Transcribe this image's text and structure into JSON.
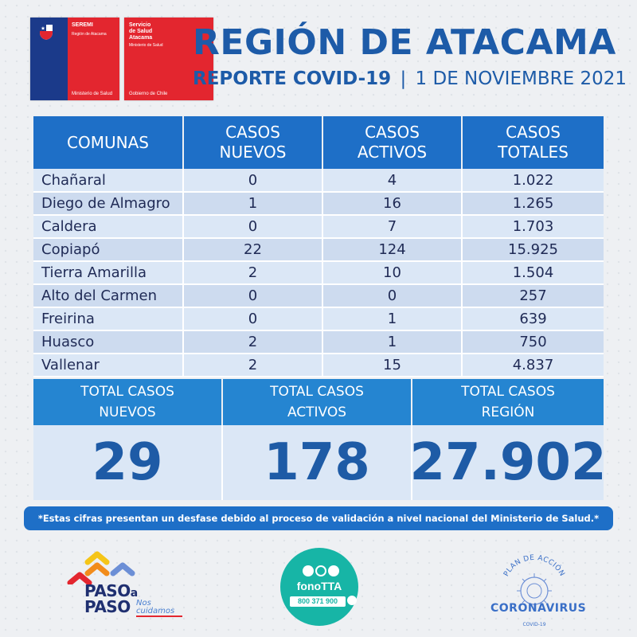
{
  "logos": {
    "seremi": {
      "title": "SEREMI",
      "region": "Región de Atacama",
      "ministry": "Ministerio de Salud"
    },
    "servicio": {
      "line1": "Servicio",
      "line2": "de Salud",
      "line3": "Atacama",
      "sub": "Ministerio de Salud",
      "gov": "Gobierno de Chile"
    }
  },
  "header": {
    "title": "REGIÓN DE ATACAMA",
    "report_label": "REPORTE COVID-19",
    "separator": "|",
    "date": "1 DE NOVIEMBRE 2021"
  },
  "table": {
    "headers": {
      "comunas": "COMUNAS",
      "nuevos_1": "CASOS",
      "nuevos_2": "NUEVOS",
      "activos_1": "CASOS",
      "activos_2": "ACTIVOS",
      "totales_1": "CASOS",
      "totales_2": "TOTALES"
    },
    "rows": [
      {
        "comuna": "Chañaral",
        "nuevos": "0",
        "activos": "4",
        "totales": "1.022"
      },
      {
        "comuna": "Diego de Almagro",
        "nuevos": "1",
        "activos": "16",
        "totales": "1.265"
      },
      {
        "comuna": "Caldera",
        "nuevos": "0",
        "activos": "7",
        "totales": "1.703"
      },
      {
        "comuna": "Copiapó",
        "nuevos": "22",
        "activos": "124",
        "totales": "15.925"
      },
      {
        "comuna": "Tierra Amarilla",
        "nuevos": "2",
        "activos": "10",
        "totales": "1.504"
      },
      {
        "comuna": "Alto del Carmen",
        "nuevos": "0",
        "activos": "0",
        "totales": "257"
      },
      {
        "comuna": "Freirina",
        "nuevos": "0",
        "activos": "1",
        "totales": "639"
      },
      {
        "comuna": "Huasco",
        "nuevos": "2",
        "activos": "1",
        "totales": "750"
      },
      {
        "comuna": "Vallenar",
        "nuevos": "2",
        "activos": "15",
        "totales": "4.837"
      }
    ]
  },
  "totals": {
    "nuevos": {
      "label_1": "TOTAL CASOS",
      "label_2": "NUEVOS",
      "value": "29"
    },
    "activos": {
      "label_1": "TOTAL CASOS",
      "label_2": "ACTIVOS",
      "value": "178"
    },
    "region": {
      "label_1": "TOTAL CASOS",
      "label_2": "REGIÓN",
      "value": "27.902"
    }
  },
  "disclaimer": "*Estas cifras presentan un desfase debido al proceso de validación a nivel nacional del Ministerio de Salud.*",
  "footer": {
    "paso": {
      "word1": "PASO",
      "a": "a",
      "word2": "PASO",
      "nos_1": "Nos",
      "nos_2": "cuidamos"
    },
    "fono": {
      "title": "fonoTTA",
      "number": "800 371 900"
    },
    "corona": {
      "arc": "PLAN DE ACCIÓN",
      "word": "CORONAVIRUS",
      "covid": "COVID-19"
    }
  },
  "colors": {
    "brand_blue": "#1d5ba8",
    "header_blue": "#1e6fc7",
    "row_light": "#dbe7f6",
    "row_dark": "#cddbef",
    "chile_red": "#e3262f",
    "chile_navy": "#1b3a8a",
    "fono_teal": "#17b5a6"
  }
}
